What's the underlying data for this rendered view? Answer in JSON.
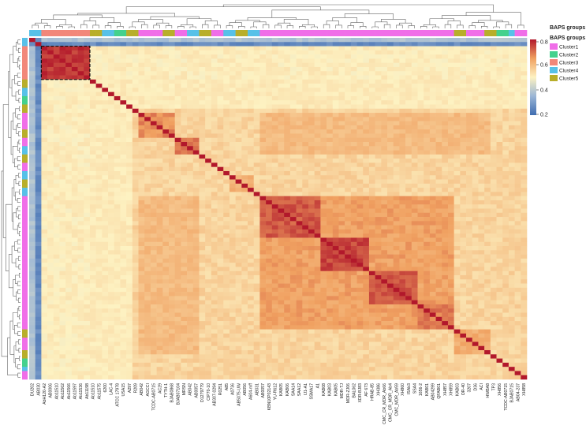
{
  "chart_data": {
    "type": "heatmap",
    "title": "",
    "xlabel": "",
    "ylabel": "",
    "value_range": [
      0.2,
      0.8
    ],
    "colorbar": {
      "ticks": [
        0.8,
        0.6,
        0.4,
        0.2
      ],
      "tick_labels": [
        "0.8",
        "0.6",
        "0.4",
        "0.2"
      ],
      "colors": [
        "#3f6cb0",
        "#9bb6d6",
        "#fdf2c2",
        "#f0a060",
        "#b2182b"
      ]
    },
    "annotation_bar": {
      "label": "BAPS groups",
      "legend_title": "BAPS groups",
      "clusters": [
        {
          "name": "Cluster1",
          "color": "#f06ee8"
        },
        {
          "name": "Cluster2",
          "color": "#44d18d"
        },
        {
          "name": "Cluster3",
          "color": "#f2877a"
        },
        {
          "name": "Cluster4",
          "color": "#57c1e8"
        },
        {
          "name": "Cluster5",
          "color": "#b8ae2a"
        }
      ]
    },
    "x_tick_labels": [
      "DU202",
      "AB030",
      "AbH120-A2",
      "AB0006",
      "Ab11510",
      "Ab11562",
      "Ab11566",
      "Ab11597",
      "Ab11536",
      "Ab11198",
      "Ab11510",
      "Ab11575",
      "6200",
      "LAC-4",
      "ATCC 17978",
      "USA15",
      "A297",
      "R209",
      "AB042",
      "AGCCI",
      "TCDC-AB0715",
      "AC29",
      "TYTH-1",
      "BJAB0868",
      "BJAB07104",
      "MRSN",
      "AB042",
      "AB0057",
      "D1279779",
      "CIP70-10",
      "AB307-0294",
      "R0251",
      "A85",
      "A0736",
      "AB5075-UW",
      "AB056",
      "A604-mff",
      "AB031",
      "AB0057",
      "KBN10P02143",
      "YU-R612",
      "KAB05",
      "KAB06",
      "SAA14",
      "SAA12",
      "IJ1-A1",
      "SSMA17",
      "A1",
      "KAB08",
      "KAB03",
      "KAB05",
      "MDR-TJ",
      "MDR-ZJ06",
      "BAL062",
      "XDR-BJ83",
      "AF 673",
      "HRAB-85",
      "XH386",
      "CMC_CR_MDR_Ab66",
      "CMC_CR_MDR_Ab4",
      "CMC_MDR_Ab59",
      "XH860",
      "ISAb3",
      "SSA4",
      "1656-2",
      "KAB01",
      "AB04299",
      "QFAB01",
      "XH857",
      "XH859",
      "KAB03",
      "OR-40",
      "3207",
      "D36",
      "ACI",
      "HWBA8",
      "TP3",
      "XH856",
      "TCDC-AB0715",
      "BJAB0715",
      "AB04-237",
      "XH858"
    ],
    "highlighted_block": {
      "rows": [
        2,
        10
      ],
      "cols": [
        2,
        10
      ]
    },
    "n_taxa": 82
  }
}
